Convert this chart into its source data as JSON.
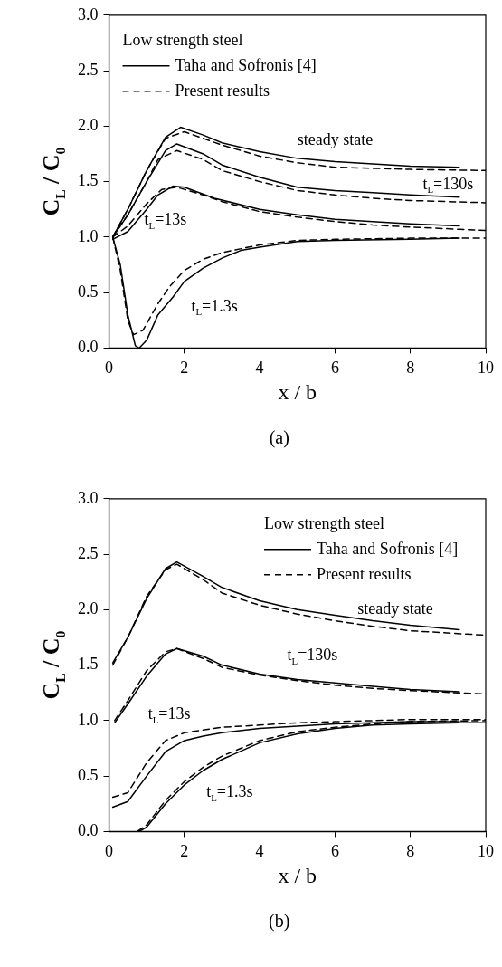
{
  "chart_data": [
    {
      "type": "line",
      "xlabel": "x / b",
      "ylabel": "C$_{L}$ / C$_{0}$",
      "legend_title": "Low strength steel",
      "legend": "top left",
      "grid": false,
      "marker": "none",
      "xlim": [
        0,
        10
      ],
      "xticks": [
        0,
        2,
        4,
        6,
        8,
        10
      ],
      "ylim": [
        0,
        3
      ],
      "yticks": [
        {
          "value": 0,
          "label": "0.0"
        },
        {
          "value": 0.5,
          "label": "0.5"
        },
        {
          "value": 1,
          "label": "1.0"
        },
        {
          "value": 1.5,
          "label": "1.5"
        },
        {
          "value": 2,
          "label": "2.0"
        },
        {
          "value": 2.5,
          "label": "2.5"
        },
        {
          "value": 3,
          "label": "3.0"
        }
      ],
      "series": [
        {
          "name": "Taha and Sofronis [4]",
          "color": "#000000",
          "line_style": "solid",
          "x": [
            0.1,
            0.5,
            1,
            1.5,
            1.9,
            2.5,
            3,
            4,
            5,
            6,
            7,
            8,
            9.3
          ],
          "values": [
            1.0,
            1.25,
            1.6,
            1.9,
            1.99,
            1.92,
            1.85,
            1.77,
            1.71,
            1.68,
            1.66,
            1.64,
            1.63
          ]
        },
        {
          "name": "Present results",
          "color": "#000000",
          "line_style": "dashed",
          "x": [
            0.1,
            0.5,
            1,
            1.5,
            2,
            3,
            4,
            5,
            6,
            7,
            8,
            10
          ],
          "values": [
            1.0,
            1.25,
            1.6,
            1.89,
            1.95,
            1.83,
            1.73,
            1.67,
            1.63,
            1.62,
            1.61,
            1.6
          ]
        },
        {
          "color": "#000000",
          "line_style": "solid",
          "x": [
            0.1,
            0.5,
            1,
            1.5,
            1.8,
            2.5,
            3,
            4,
            5,
            6,
            7,
            8,
            9.3
          ],
          "values": [
            1.0,
            1.2,
            1.5,
            1.78,
            1.84,
            1.75,
            1.65,
            1.54,
            1.45,
            1.42,
            1.4,
            1.38,
            1.36
          ]
        },
        {
          "color": "#000000",
          "line_style": "dashed",
          "x": [
            0.1,
            0.5,
            1,
            1.3,
            1.8,
            2.5,
            3,
            4,
            5,
            6,
            7,
            8,
            10
          ],
          "values": [
            1.0,
            1.2,
            1.5,
            1.7,
            1.78,
            1.7,
            1.6,
            1.5,
            1.42,
            1.38,
            1.35,
            1.33,
            1.31
          ]
        },
        {
          "color": "#000000",
          "line_style": "solid",
          "x": [
            0.1,
            0.5,
            1,
            1.3,
            1.7,
            2,
            2.8,
            4,
            5,
            6,
            7,
            8,
            9.3
          ],
          "values": [
            0.98,
            1.05,
            1.25,
            1.38,
            1.46,
            1.45,
            1.35,
            1.25,
            1.2,
            1.16,
            1.14,
            1.12,
            1.1
          ]
        },
        {
          "color": "#000000",
          "line_style": "dashed",
          "x": [
            0.1,
            0.5,
            1,
            1.4,
            1.8,
            2.5,
            3,
            4,
            5,
            6,
            7,
            8,
            10
          ],
          "values": [
            1.0,
            1.1,
            1.3,
            1.43,
            1.45,
            1.38,
            1.32,
            1.23,
            1.18,
            1.14,
            1.11,
            1.09,
            1.06
          ]
        },
        {
          "color": "#000000",
          "line_style": "solid",
          "x": [
            0.1,
            0.3,
            0.5,
            0.7,
            0.8,
            1,
            1.3,
            1.7,
            2,
            2.5,
            3,
            3.5,
            4,
            5,
            6,
            8,
            9.3
          ],
          "values": [
            1.0,
            0.75,
            0.3,
            0.02,
            0.0,
            0.07,
            0.3,
            0.46,
            0.6,
            0.72,
            0.81,
            0.88,
            0.91,
            0.96,
            0.97,
            0.98,
            0.99
          ]
        },
        {
          "color": "#000000",
          "line_style": "dashed",
          "x": [
            0.1,
            0.3,
            0.5,
            0.65,
            0.9,
            1.3,
            1.6,
            2,
            2.5,
            3,
            4,
            5,
            6,
            8,
            10
          ],
          "values": [
            1.0,
            0.7,
            0.25,
            0.12,
            0.16,
            0.4,
            0.55,
            0.7,
            0.8,
            0.86,
            0.93,
            0.97,
            0.98,
            0.99,
            0.99
          ]
        }
      ],
      "annotations": [
        "steady state",
        "t$_{L}$=130s",
        "t$_{L}$=13s",
        "t$_{L}$=1.3s",
        "(a)"
      ]
    },
    {
      "type": "line",
      "xlabel": "x / b",
      "ylabel": "C$_{L}$ / C$_{0}$",
      "legend_title": "Low strength steel",
      "legend": "top right",
      "grid": false,
      "marker": "none",
      "xlim": [
        0,
        10
      ],
      "xticks": [
        0,
        2,
        4,
        6,
        8,
        10
      ],
      "ylim": [
        0,
        3
      ],
      "yticks": [
        {
          "value": 0,
          "label": "0.0"
        },
        {
          "value": 0.5,
          "label": "0.5"
        },
        {
          "value": 1,
          "label": "1.0"
        },
        {
          "value": 1.5,
          "label": "1.5"
        },
        {
          "value": 2,
          "label": "2.0"
        },
        {
          "value": 2.5,
          "label": "2.5"
        },
        {
          "value": 3,
          "label": "3.0"
        }
      ],
      "series": [
        {
          "name": "Taha and Sofronis [4]",
          "color": "#000000",
          "line_style": "solid",
          "x": [
            0.1,
            0.5,
            1,
            1.5,
            1.8,
            2.5,
            3,
            4,
            5,
            6,
            7,
            8,
            9.3
          ],
          "values": [
            1.52,
            1.75,
            2.1,
            2.37,
            2.43,
            2.3,
            2.2,
            2.08,
            2.0,
            1.95,
            1.9,
            1.86,
            1.82
          ]
        },
        {
          "name": "Present results",
          "color": "#000000",
          "line_style": "dashed",
          "x": [
            0.1,
            0.5,
            1,
            1.5,
            1.8,
            2.5,
            3,
            4,
            5,
            6,
            7,
            8,
            10
          ],
          "values": [
            1.5,
            1.75,
            2.12,
            2.36,
            2.41,
            2.27,
            2.15,
            2.04,
            1.96,
            1.9,
            1.85,
            1.81,
            1.77
          ]
        },
        {
          "color": "#000000",
          "line_style": "solid",
          "x": [
            0.15,
            0.5,
            1,
            1.5,
            1.8,
            2.5,
            3,
            4,
            5,
            6,
            7,
            8,
            9.3
          ],
          "values": [
            0.98,
            1.15,
            1.4,
            1.6,
            1.65,
            1.58,
            1.5,
            1.42,
            1.37,
            1.34,
            1.31,
            1.28,
            1.26
          ]
        },
        {
          "color": "#000000",
          "line_style": "dashed",
          "x": [
            0.15,
            0.5,
            1,
            1.5,
            1.8,
            2.5,
            3,
            4,
            5,
            6,
            7,
            8,
            10
          ],
          "values": [
            1.0,
            1.18,
            1.45,
            1.62,
            1.65,
            1.56,
            1.48,
            1.41,
            1.36,
            1.32,
            1.29,
            1.27,
            1.24
          ]
        },
        {
          "color": "#000000",
          "line_style": "solid",
          "x": [
            0.1,
            0.5,
            1,
            1.5,
            2,
            2.5,
            3,
            4,
            5,
            6,
            7,
            8,
            9.3
          ],
          "values": [
            0.22,
            0.27,
            0.5,
            0.72,
            0.82,
            0.86,
            0.89,
            0.93,
            0.95,
            0.97,
            0.98,
            0.99,
            0.99
          ]
        },
        {
          "color": "#000000",
          "line_style": "dashed",
          "x": [
            0.1,
            0.5,
            1,
            1.5,
            2,
            3,
            4,
            5,
            6,
            7,
            8,
            10
          ],
          "values": [
            0.31,
            0.35,
            0.62,
            0.82,
            0.89,
            0.94,
            0.96,
            0.98,
            0.99,
            1.0,
            1.01,
            1.01
          ]
        },
        {
          "color": "#000000",
          "line_style": "solid",
          "x": [
            0.8,
            1,
            1.5,
            2,
            2.5,
            3,
            4,
            5,
            6,
            7,
            8,
            9.3,
            10
          ],
          "values": [
            0.0,
            0.04,
            0.25,
            0.42,
            0.55,
            0.65,
            0.8,
            0.88,
            0.93,
            0.96,
            0.97,
            0.98,
            0.98
          ]
        },
        {
          "color": "#000000",
          "line_style": "dashed",
          "x": [
            0.75,
            1,
            1.5,
            2,
            2.5,
            3,
            4,
            5,
            6,
            7,
            8,
            10
          ],
          "values": [
            0.0,
            0.06,
            0.28,
            0.45,
            0.58,
            0.68,
            0.82,
            0.9,
            0.94,
            0.97,
            0.99,
            1.0
          ]
        }
      ],
      "annotations": [
        "steady state",
        "t$_{L}$=130s",
        "t$_{L}$=13s",
        "t$_{L}$=1.3s",
        "(b)"
      ]
    }
  ]
}
